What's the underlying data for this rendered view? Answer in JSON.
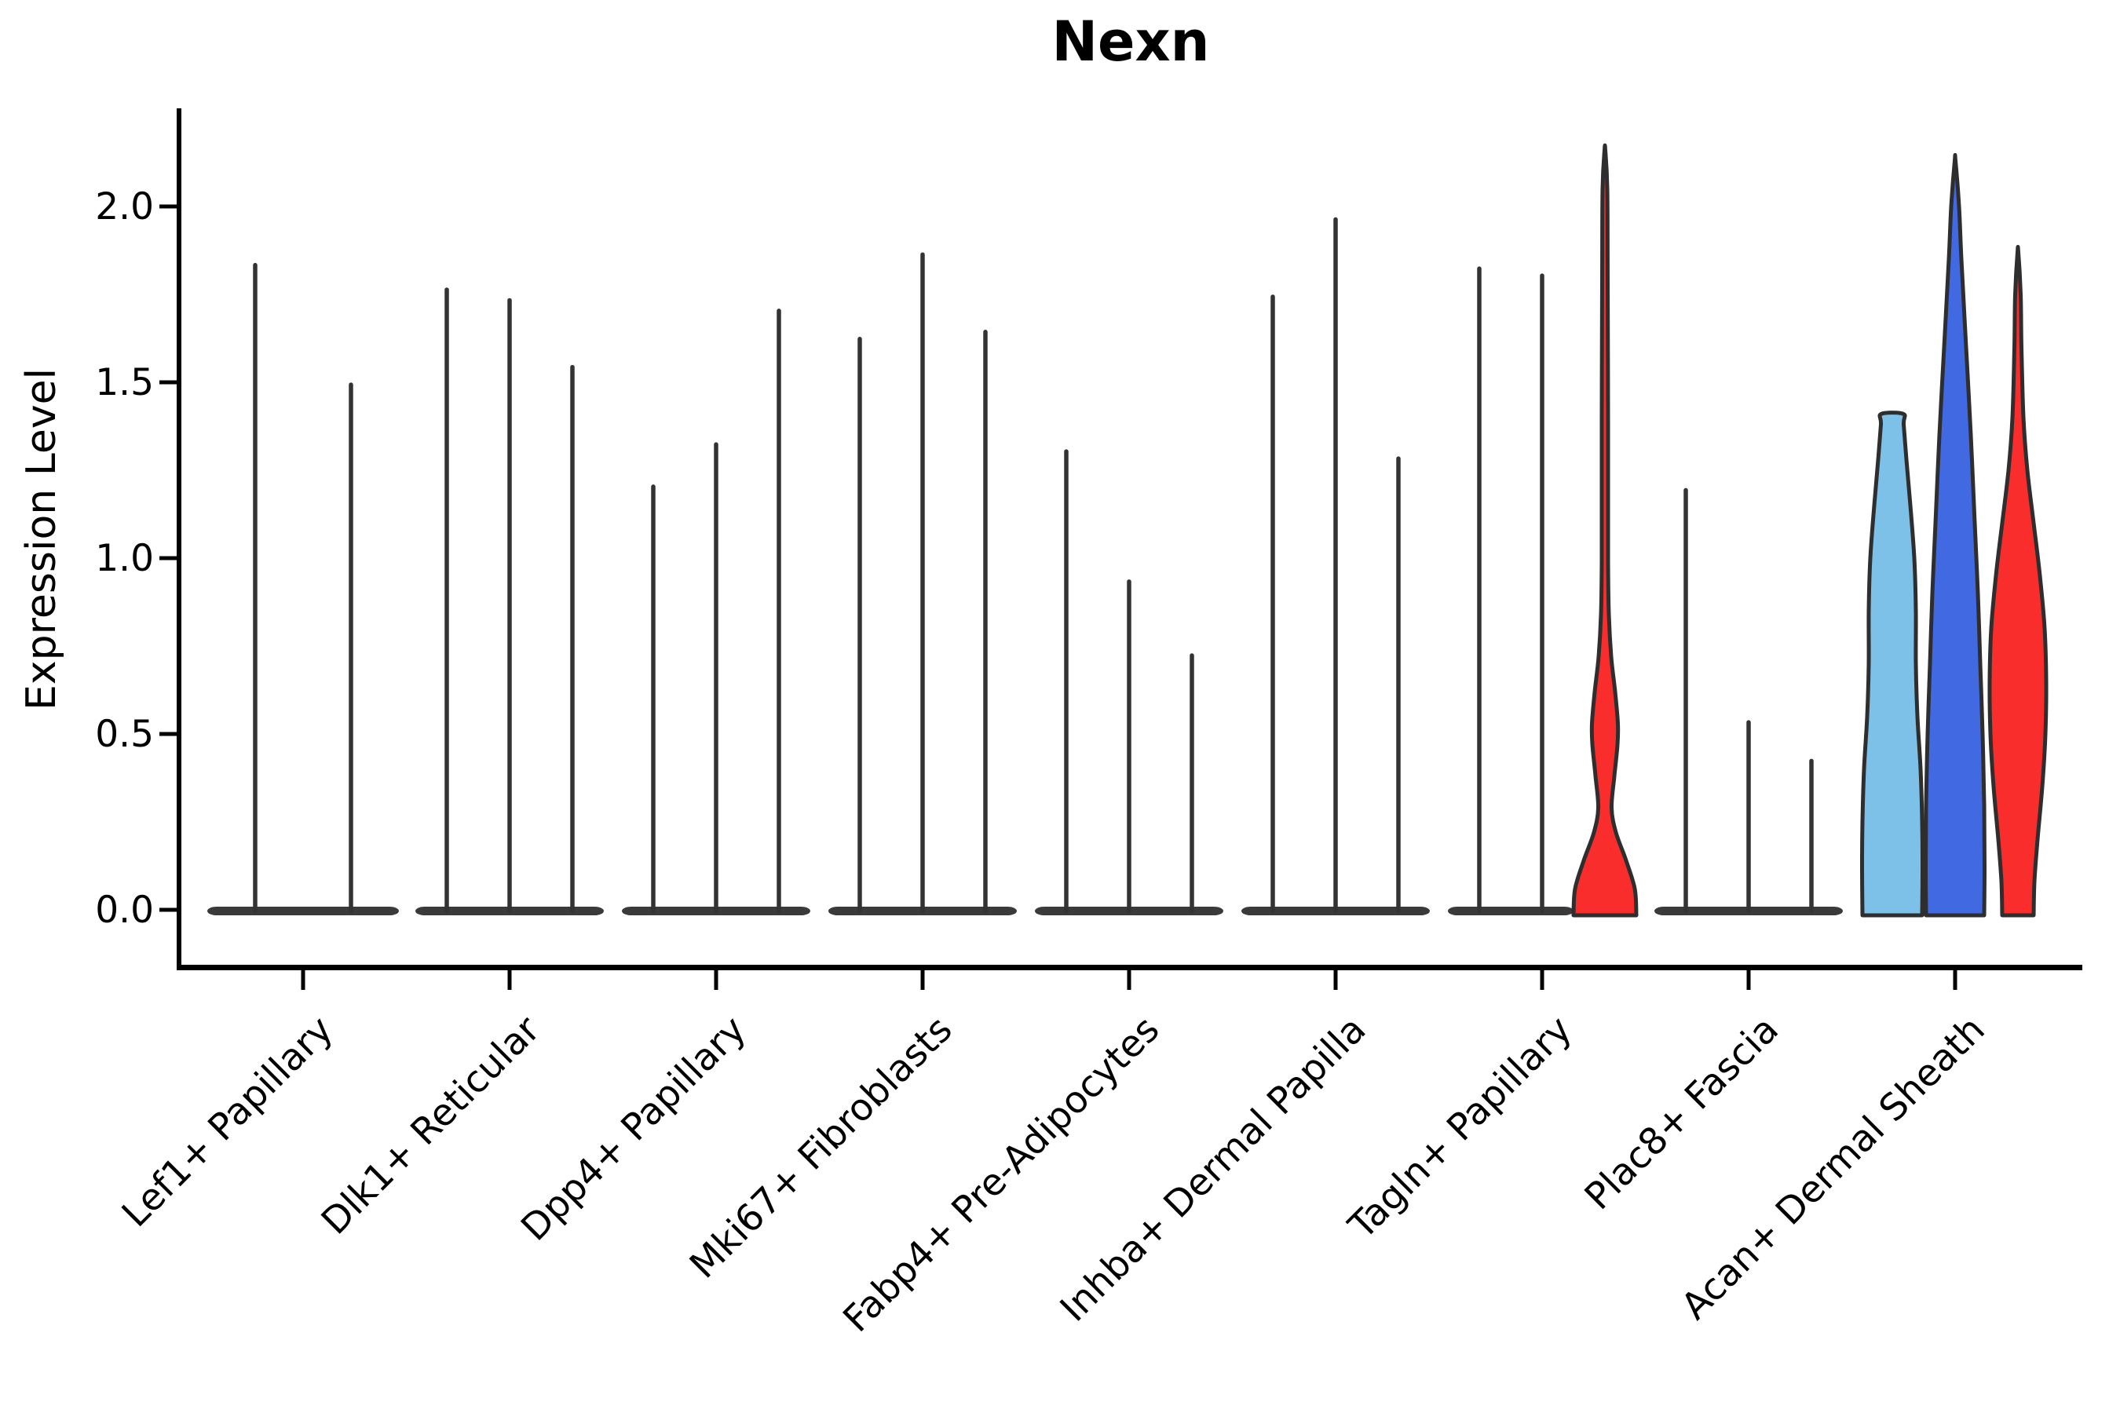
{
  "title": "Nexn",
  "axes": {
    "y_label": "Expression Level",
    "y_tick_labels": [
      "0.0",
      "0.5",
      "1.0",
      "1.5",
      "2.0"
    ]
  },
  "colors": {
    "spine": "#000000",
    "collapsed_violin": "#333333",
    "base_band": "#3a3a3a",
    "outline": "#2e2e2e",
    "sky_blue": "#7ec1e8",
    "royal_blue": "#4169e1",
    "red": "#fa2d2d"
  },
  "chart_data": {
    "type": "violin",
    "title": "Nexn",
    "xlabel": "",
    "ylabel": "Expression Level",
    "ylim": [
      -0.17,
      2.28
    ],
    "yticks": [
      0.0,
      0.5,
      1.0,
      1.5,
      2.0
    ],
    "grid": false,
    "legend": "none",
    "note": "Violin plot of Nexn expression across 9 fibroblast cell-type clusters; most violins are collapsed to thin zero-density spikes (max expression line only). Colored violins: red violin in Tagln+ Papillary (3rd slot), and sky-blue / royal-blue / red violins in Acan+ Dermal Sheath.",
    "categories": [
      {
        "label": "Lef1+ Papillary",
        "violins": [
          {
            "shape": "collapsed",
            "max": 1.84
          },
          {
            "shape": "collapsed",
            "max": 1.5
          }
        ]
      },
      {
        "label": "Dlk1+ Reticular",
        "violins": [
          {
            "shape": "collapsed",
            "max": 1.77
          },
          {
            "shape": "collapsed",
            "max": 1.74
          },
          {
            "shape": "collapsed",
            "max": 1.55
          }
        ]
      },
      {
        "label": "Dpp4+ Papillary",
        "violins": [
          {
            "shape": "collapsed",
            "max": 1.21
          },
          {
            "shape": "collapsed",
            "max": 1.33
          },
          {
            "shape": "collapsed",
            "max": 1.71
          }
        ]
      },
      {
        "label": "Mki67+ Fibroblasts",
        "violins": [
          {
            "shape": "collapsed",
            "max": 1.63
          },
          {
            "shape": "collapsed",
            "max": 1.87
          },
          {
            "shape": "collapsed",
            "max": 1.65
          }
        ]
      },
      {
        "label": "Fabp4+ Pre-Adipocytes",
        "violins": [
          {
            "shape": "collapsed",
            "max": 1.31
          },
          {
            "shape": "collapsed",
            "max": 0.94
          },
          {
            "shape": "collapsed",
            "max": 0.73
          }
        ]
      },
      {
        "label": "Inhba+ Dermal Papilla",
        "violins": [
          {
            "shape": "collapsed",
            "max": 1.75
          },
          {
            "shape": "collapsed",
            "max": 1.97
          },
          {
            "shape": "collapsed",
            "max": 1.29
          }
        ]
      },
      {
        "label": "Tagln+ Papillary",
        "violins": [
          {
            "shape": "collapsed",
            "max": 1.83
          },
          {
            "shape": "collapsed",
            "max": 1.81
          },
          {
            "shape": "violin",
            "max": 2.16,
            "color": "#fa2d2d",
            "profile": [
              [
                0,
                40
              ],
              [
                0.06,
                38
              ],
              [
                0.14,
                27
              ],
              [
                0.22,
                14
              ],
              [
                0.29,
                8.5
              ],
              [
                0.38,
                12
              ],
              [
                0.47,
                16
              ],
              [
                0.53,
                16.5
              ],
              [
                0.62,
                13
              ],
              [
                0.72,
                8
              ],
              [
                0.84,
                5
              ],
              [
                1.0,
                4
              ],
              [
                1.4,
                4
              ],
              [
                1.8,
                3.5
              ],
              [
                2.05,
                3
              ],
              [
                2.16,
                0.5
              ]
            ]
          }
        ]
      },
      {
        "label": "Plac8+ Fascia",
        "violins": [
          {
            "shape": "collapsed",
            "max": 1.2
          },
          {
            "shape": "collapsed",
            "max": 0.54
          },
          {
            "shape": "collapsed",
            "max": 0.43
          }
        ]
      },
      {
        "label": "Acan+ Dermal Sheath",
        "violins": [
          {
            "shape": "violin",
            "max": 1.41,
            "color": "#7ec1e8",
            "profile": [
              [
                0,
                38
              ],
              [
                0.12,
                38.5
              ],
              [
                0.25,
                38
              ],
              [
                0.4,
                36
              ],
              [
                0.55,
                32
              ],
              [
                0.7,
                30
              ],
              [
                0.85,
                30
              ],
              [
                1.0,
                28
              ],
              [
                1.15,
                23
              ],
              [
                1.28,
                18
              ],
              [
                1.38,
                14.5
              ],
              [
                1.41,
                14
              ]
            ]
          },
          {
            "shape": "violin",
            "max": 2.13,
            "color": "#4169e1",
            "profile": [
              [
                0,
                37
              ],
              [
                0.12,
                37.5
              ],
              [
                0.3,
                37
              ],
              [
                0.5,
                35
              ],
              [
                0.7,
                32
              ],
              [
                0.9,
                29
              ],
              [
                1.1,
                25
              ],
              [
                1.35,
                20
              ],
              [
                1.6,
                14
              ],
              [
                1.85,
                8
              ],
              [
                2.0,
                5
              ],
              [
                2.13,
                0.5
              ]
            ]
          },
          {
            "shape": "violin",
            "max": 1.87,
            "color": "#fa2d2d",
            "profile": [
              [
                0,
                20
              ],
              [
                0.08,
                21
              ],
              [
                0.2,
                25
              ],
              [
                0.35,
                31
              ],
              [
                0.5,
                35
              ],
              [
                0.65,
                36
              ],
              [
                0.8,
                34
              ],
              [
                0.95,
                28
              ],
              [
                1.1,
                20
              ],
              [
                1.25,
                12
              ],
              [
                1.4,
                7
              ],
              [
                1.6,
                4.5
              ],
              [
                1.75,
                3.5
              ],
              [
                1.87,
                0.5
              ]
            ]
          }
        ]
      }
    ]
  }
}
